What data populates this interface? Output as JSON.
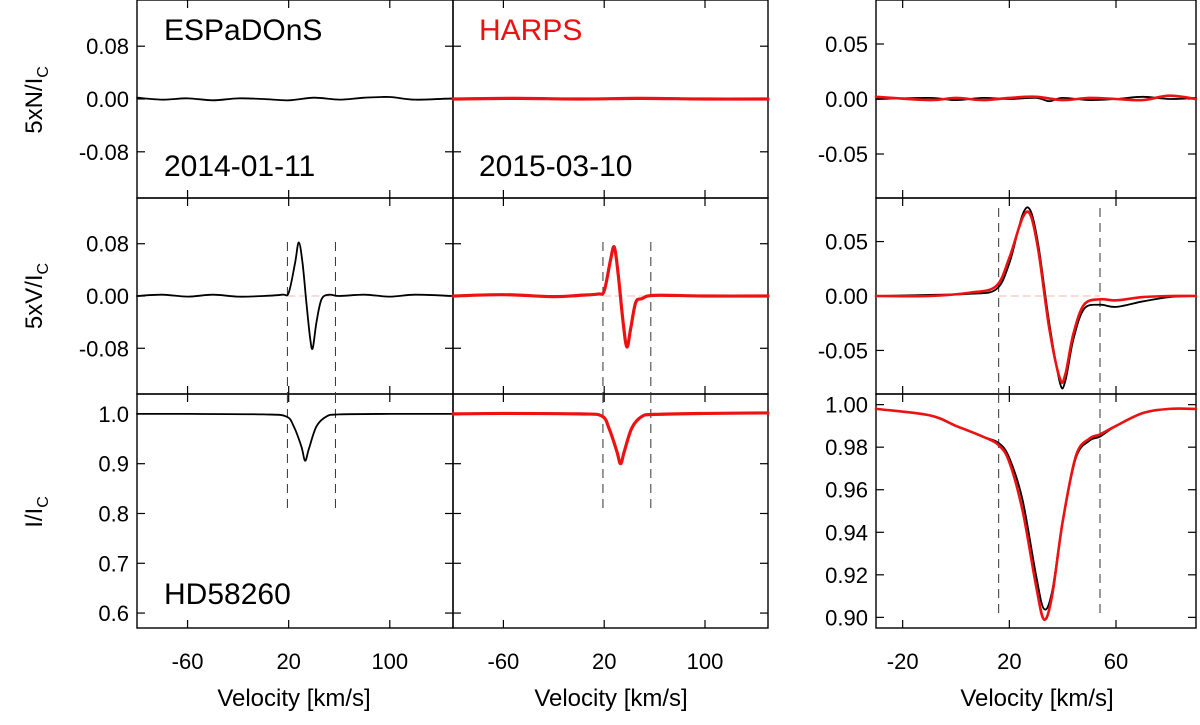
{
  "figure": {
    "row_labels": {
      "n": {
        "main": "5xN/I",
        "sub": "C"
      },
      "v": {
        "main": "5xV/I",
        "sub": "C"
      },
      "i": {
        "main": "I/I",
        "sub": "C"
      }
    },
    "xlabel": "Velocity [km/s]",
    "instrument_left": "ESPaDOnS",
    "instrument_mid": "HARPS",
    "date_left": "2014-01-11",
    "date_mid": "2015-03-10",
    "star": "HD58260",
    "colors": {
      "espadons": "#000000",
      "harps": "#ee1111"
    }
  },
  "chart_data": [
    {
      "panel": "left",
      "type": "line",
      "title": "ESPaDOnS",
      "xlabel": "Velocity [km/s]",
      "xlim": [
        -100,
        150
      ],
      "xticks": [
        -60,
        20,
        100
      ],
      "integration_limits": [
        19,
        57
      ],
      "rows": {
        "n": {
          "ylabel": "5xN/I_C",
          "ylim": [
            -0.15,
            0.15
          ],
          "yticks": [
            "0.08",
            "0.00",
            "-0.08"
          ]
        },
        "v": {
          "ylabel": "5xV/I_C",
          "ylim": [
            -0.15,
            0.15
          ],
          "yticks": [
            "0.08",
            "0.00",
            "-0.08"
          ]
        },
        "i": {
          "ylabel": "I/I_C",
          "ylim": [
            0.57,
            1.04
          ],
          "yticks": [
            "1.0",
            "0.9",
            "0.8",
            "0.7",
            "0.6"
          ]
        }
      },
      "series": [
        {
          "instrument": "ESPaDOnS",
          "color": "#000000",
          "n": [
            [
              -100,
              0.002
            ],
            [
              -80,
              -0.001
            ],
            [
              -60,
              0.001
            ],
            [
              -40,
              -0.002
            ],
            [
              -20,
              0.001
            ],
            [
              0,
              0.0
            ],
            [
              20,
              -0.002
            ],
            [
              40,
              0.002
            ],
            [
              60,
              -0.001
            ],
            [
              80,
              0.002
            ],
            [
              100,
              0.003
            ],
            [
              120,
              -0.001
            ],
            [
              150,
              0.001
            ]
          ],
          "v": [
            [
              -100,
              0.0
            ],
            [
              -80,
              0.002
            ],
            [
              -60,
              -0.001
            ],
            [
              -40,
              0.002
            ],
            [
              -20,
              -0.001
            ],
            [
              0,
              0.0
            ],
            [
              15,
              0.002
            ],
            [
              20,
              0.005
            ],
            [
              25,
              0.05
            ],
            [
              28,
              0.082
            ],
            [
              31,
              0.05
            ],
            [
              34,
              -0.01
            ],
            [
              37,
              -0.065
            ],
            [
              39,
              -0.08
            ],
            [
              42,
              -0.04
            ],
            [
              46,
              -0.005
            ],
            [
              52,
              0.002
            ],
            [
              60,
              0.0
            ],
            [
              80,
              0.002
            ],
            [
              100,
              -0.001
            ],
            [
              120,
              0.002
            ],
            [
              150,
              0.0
            ]
          ],
          "i": [
            [
              -100,
              1.0
            ],
            [
              -60,
              1.0
            ],
            [
              0,
              0.999
            ],
            [
              18,
              0.995
            ],
            [
              24,
              0.975
            ],
            [
              30,
              0.935
            ],
            [
              33,
              0.906
            ],
            [
              36,
              0.93
            ],
            [
              42,
              0.975
            ],
            [
              50,
              0.995
            ],
            [
              60,
              0.999
            ],
            [
              100,
              1.0
            ],
            [
              150,
              1.0
            ]
          ]
        }
      ]
    },
    {
      "panel": "middle",
      "type": "line",
      "title": "HARPS",
      "xlabel": "Velocity [km/s]",
      "xlim": [
        -100,
        150
      ],
      "xticks": [
        -60,
        20,
        100
      ],
      "integration_limits": [
        19,
        57
      ],
      "series": [
        {
          "instrument": "HARPS",
          "color": "#ee1111",
          "n": [
            [
              -100,
              0.0
            ],
            [
              -50,
              0.001
            ],
            [
              0,
              0.0
            ],
            [
              50,
              0.001
            ],
            [
              100,
              0.0
            ],
            [
              150,
              0.0
            ]
          ],
          "v": [
            [
              -100,
              0.0
            ],
            [
              -60,
              0.002
            ],
            [
              -20,
              -0.001
            ],
            [
              0,
              0.001
            ],
            [
              15,
              0.003
            ],
            [
              20,
              0.008
            ],
            [
              25,
              0.055
            ],
            [
              28,
              0.075
            ],
            [
              31,
              0.035
            ],
            [
              35,
              -0.04
            ],
            [
              38,
              -0.078
            ],
            [
              41,
              -0.05
            ],
            [
              45,
              -0.01
            ],
            [
              50,
              -0.004
            ],
            [
              60,
              0.001
            ],
            [
              100,
              0.0
            ],
            [
              150,
              0.0
            ]
          ],
          "i": [
            [
              -100,
              1.0
            ],
            [
              -60,
              1.001
            ],
            [
              0,
              1.0
            ],
            [
              18,
              0.996
            ],
            [
              24,
              0.97
            ],
            [
              30,
              0.925
            ],
            [
              33,
              0.9
            ],
            [
              36,
              0.925
            ],
            [
              42,
              0.972
            ],
            [
              50,
              0.995
            ],
            [
              60,
              0.999
            ],
            [
              100,
              1.001
            ],
            [
              150,
              1.002
            ]
          ]
        }
      ]
    },
    {
      "panel": "right",
      "type": "line",
      "title": "",
      "xlabel": "Velocity [km/s]",
      "xlim": [
        -30,
        90
      ],
      "xticks": [
        -20,
        20,
        60
      ],
      "integration_limits": [
        16,
        54
      ],
      "rows": {
        "n": {
          "ylim": [
            -0.09,
            0.09
          ],
          "yticks": [
            "0.05",
            "0.00",
            "-0.05"
          ]
        },
        "v": {
          "ylim": [
            -0.09,
            0.09
          ],
          "yticks": [
            "0.05",
            "0.00",
            "-0.05"
          ]
        },
        "i": {
          "ylim": [
            0.895,
            1.005
          ],
          "yticks": [
            "1.00",
            "0.98",
            "0.96",
            "0.94",
            "0.92",
            "0.90"
          ]
        }
      },
      "series": [
        {
          "instrument": "ESPaDOnS",
          "color": "#000000",
          "n": [
            [
              -30,
              0.0
            ],
            [
              -10,
              0.001
            ],
            [
              0,
              -0.001
            ],
            [
              10,
              0.001
            ],
            [
              20,
              0.0
            ],
            [
              30,
              0.001
            ],
            [
              35,
              -0.002
            ],
            [
              40,
              0.001
            ],
            [
              50,
              -0.001
            ],
            [
              60,
              0.0
            ],
            [
              70,
              0.002
            ],
            [
              80,
              0.0
            ],
            [
              90,
              0.001
            ]
          ],
          "v": [
            [
              -30,
              0.0
            ],
            [
              -10,
              0.001
            ],
            [
              5,
              0.002
            ],
            [
              15,
              0.006
            ],
            [
              20,
              0.03
            ],
            [
              25,
              0.075
            ],
            [
              28,
              0.078
            ],
            [
              31,
              0.045
            ],
            [
              35,
              -0.025
            ],
            [
              39,
              -0.08
            ],
            [
              41,
              -0.078
            ],
            [
              44,
              -0.04
            ],
            [
              48,
              -0.012
            ],
            [
              54,
              -0.008
            ],
            [
              60,
              -0.01
            ],
            [
              70,
              -0.005
            ],
            [
              80,
              -0.001
            ],
            [
              90,
              0.0
            ]
          ],
          "i": [
            [
              -30,
              0.998
            ],
            [
              -10,
              0.995
            ],
            [
              0,
              0.99
            ],
            [
              10,
              0.985
            ],
            [
              16,
              0.982
            ],
            [
              20,
              0.975
            ],
            [
              25,
              0.955
            ],
            [
              30,
              0.92
            ],
            [
              33,
              0.904
            ],
            [
              36,
              0.912
            ],
            [
              40,
              0.945
            ],
            [
              45,
              0.975
            ],
            [
              50,
              0.983
            ],
            [
              54,
              0.985
            ],
            [
              60,
              0.99
            ],
            [
              70,
              0.996
            ],
            [
              80,
              0.998
            ],
            [
              90,
              0.998
            ]
          ]
        },
        {
          "instrument": "HARPS",
          "color": "#ee1111",
          "n": [
            [
              -30,
              0.002
            ],
            [
              -10,
              -0.001
            ],
            [
              0,
              0.001
            ],
            [
              10,
              -0.001
            ],
            [
              20,
              0.001
            ],
            [
              30,
              0.002
            ],
            [
              40,
              -0.001
            ],
            [
              50,
              0.001
            ],
            [
              60,
              0.0
            ],
            [
              70,
              -0.001
            ],
            [
              80,
              0.003
            ],
            [
              90,
              0.0
            ]
          ],
          "v": [
            [
              -30,
              0.0
            ],
            [
              -10,
              0.0
            ],
            [
              5,
              0.003
            ],
            [
              15,
              0.009
            ],
            [
              20,
              0.035
            ],
            [
              25,
              0.072
            ],
            [
              28,
              0.074
            ],
            [
              31,
              0.04
            ],
            [
              35,
              -0.03
            ],
            [
              39,
              -0.076
            ],
            [
              41,
              -0.072
            ],
            [
              44,
              -0.035
            ],
            [
              48,
              -0.008
            ],
            [
              54,
              -0.003
            ],
            [
              60,
              -0.004
            ],
            [
              70,
              -0.001
            ],
            [
              80,
              0.0
            ],
            [
              90,
              0.0
            ]
          ],
          "i": [
            [
              -30,
              0.998
            ],
            [
              -10,
              0.995
            ],
            [
              0,
              0.99
            ],
            [
              10,
              0.985
            ],
            [
              16,
              0.981
            ],
            [
              20,
              0.973
            ],
            [
              25,
              0.95
            ],
            [
              30,
              0.915
            ],
            [
              33,
              0.899
            ],
            [
              36,
              0.91
            ],
            [
              40,
              0.945
            ],
            [
              45,
              0.976
            ],
            [
              50,
              0.984
            ],
            [
              54,
              0.986
            ],
            [
              60,
              0.99
            ],
            [
              70,
              0.996
            ],
            [
              80,
              0.998
            ],
            [
              90,
              0.998
            ]
          ]
        }
      ]
    }
  ]
}
